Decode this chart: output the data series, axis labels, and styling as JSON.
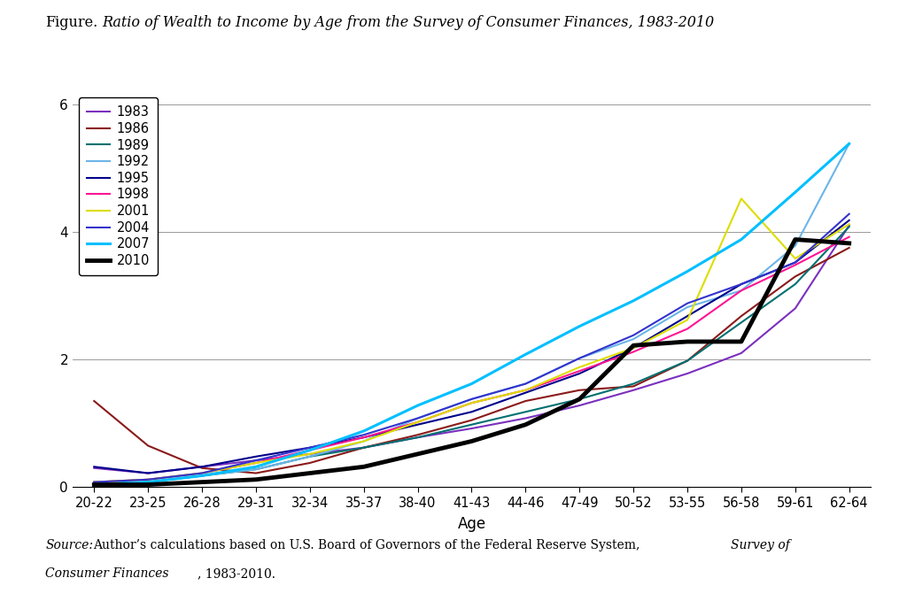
{
  "title_normal": "Figure.",
  "title_italic": " Ratio of Wealth to Income by Age from the Survey of Consumer Finances, 1983-2010",
  "xlabel": "Age",
  "age_labels": [
    "20-22",
    "23-25",
    "26-28",
    "29-31",
    "32-34",
    "35-37",
    "38-40",
    "41-43",
    "44-46",
    "47-49",
    "50-52",
    "53-55",
    "56-58",
    "59-61",
    "62-64"
  ],
  "ylim": [
    0,
    6.2
  ],
  "yticks": [
    0,
    2,
    4,
    6
  ],
  "fig_width": 10.24,
  "fig_height": 6.88,
  "years_order": [
    "1983",
    "1986",
    "1989",
    "1992",
    "1995",
    "1998",
    "2001",
    "2004",
    "2007",
    "2010"
  ],
  "series": {
    "1983": {
      "color": "#7B2FBE",
      "linewidth": 1.5,
      "values": [
        0.3,
        0.22,
        0.32,
        0.42,
        0.52,
        0.62,
        0.78,
        0.92,
        1.08,
        1.28,
        1.52,
        1.78,
        2.1,
        2.8,
        4.1
      ]
    },
    "1986": {
      "color": "#8B1A1A",
      "linewidth": 1.5,
      "values": [
        1.35,
        0.65,
        0.3,
        0.22,
        0.38,
        0.62,
        0.82,
        1.05,
        1.35,
        1.52,
        1.58,
        1.98,
        2.68,
        3.3,
        3.75
      ]
    },
    "1989": {
      "color": "#007070",
      "linewidth": 1.5,
      "values": [
        0.08,
        0.08,
        0.18,
        0.28,
        0.48,
        0.62,
        0.78,
        0.98,
        1.18,
        1.38,
        1.62,
        1.98,
        2.58,
        3.18,
        4.08
      ]
    },
    "1992": {
      "color": "#6BB5E8",
      "linewidth": 1.5,
      "values": [
        0.04,
        0.08,
        0.18,
        0.28,
        0.48,
        0.72,
        1.08,
        1.38,
        1.62,
        2.02,
        2.32,
        2.82,
        3.08,
        3.78,
        5.38
      ]
    },
    "1995": {
      "color": "#00008B",
      "linewidth": 1.5,
      "values": [
        0.32,
        0.22,
        0.32,
        0.48,
        0.62,
        0.78,
        0.98,
        1.18,
        1.48,
        1.78,
        2.18,
        2.68,
        3.18,
        3.52,
        4.18
      ]
    },
    "1998": {
      "color": "#FF1493",
      "linewidth": 1.5,
      "values": [
        0.08,
        0.12,
        0.22,
        0.38,
        0.58,
        0.78,
        1.02,
        1.32,
        1.52,
        1.82,
        2.12,
        2.48,
        3.08,
        3.48,
        3.92
      ]
    },
    "2001": {
      "color": "#DDDD00",
      "linewidth": 1.5,
      "values": [
        0.08,
        0.12,
        0.22,
        0.38,
        0.52,
        0.72,
        1.02,
        1.32,
        1.52,
        1.88,
        2.18,
        2.62,
        4.52,
        3.58,
        4.12
      ]
    },
    "2004": {
      "color": "#3333CC",
      "linewidth": 1.5,
      "values": [
        0.08,
        0.12,
        0.22,
        0.42,
        0.62,
        0.82,
        1.08,
        1.38,
        1.62,
        2.02,
        2.38,
        2.88,
        3.18,
        3.52,
        4.28
      ]
    },
    "2007": {
      "color": "#00BFFF",
      "linewidth": 2.2,
      "values": [
        0.04,
        0.08,
        0.18,
        0.32,
        0.58,
        0.88,
        1.28,
        1.62,
        2.08,
        2.52,
        2.92,
        3.38,
        3.88,
        4.62,
        5.38
      ]
    },
    "2010": {
      "color": "#000000",
      "linewidth": 3.5,
      "values": [
        0.04,
        0.04,
        0.08,
        0.12,
        0.22,
        0.32,
        0.52,
        0.72,
        0.98,
        1.38,
        2.22,
        2.28,
        2.28,
        3.88,
        3.82
      ]
    }
  }
}
